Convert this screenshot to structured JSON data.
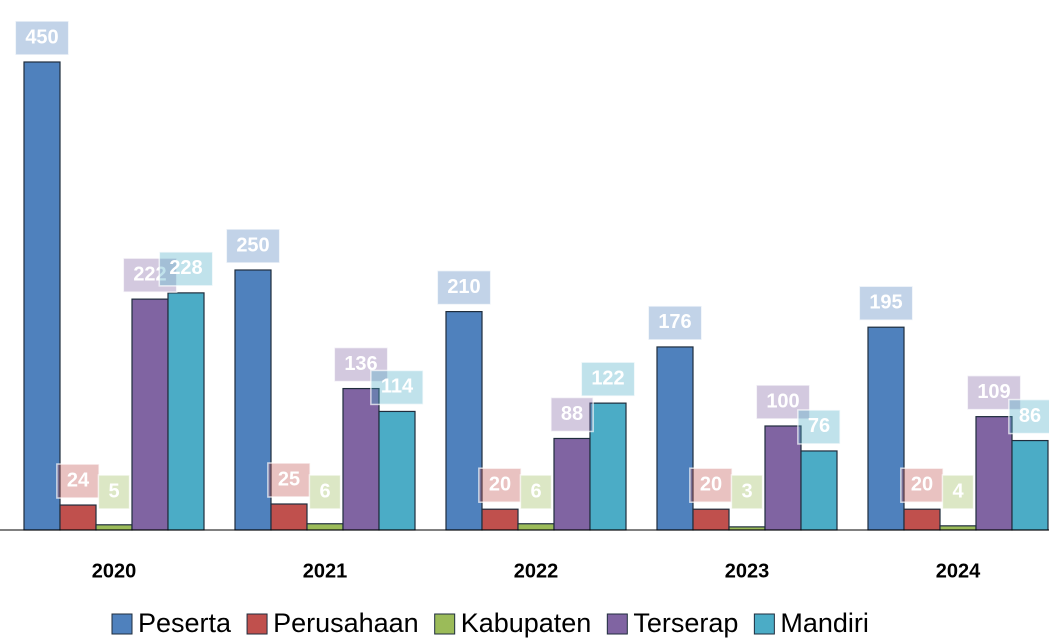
{
  "chart_data": {
    "type": "bar",
    "categories": [
      "2020",
      "2021",
      "2022",
      "2023",
      "2024"
    ],
    "series": [
      {
        "name": "Peserta",
        "color": "#4f81bd",
        "values": [
          450,
          250,
          210,
          176,
          195
        ]
      },
      {
        "name": "Perusahaan",
        "color": "#c0504d",
        "values": [
          24,
          25,
          20,
          20,
          20
        ]
      },
      {
        "name": "Kabupaten",
        "color": "#9bbb59",
        "values": [
          5,
          6,
          6,
          3,
          4
        ]
      },
      {
        "name": "Terserap",
        "color": "#8064a2",
        "values": [
          222,
          136,
          88,
          100,
          109
        ]
      },
      {
        "name": "Mandiri",
        "color": "#4bacc6",
        "values": [
          228,
          114,
          122,
          76,
          86
        ]
      }
    ],
    "legend": "bottom"
  }
}
